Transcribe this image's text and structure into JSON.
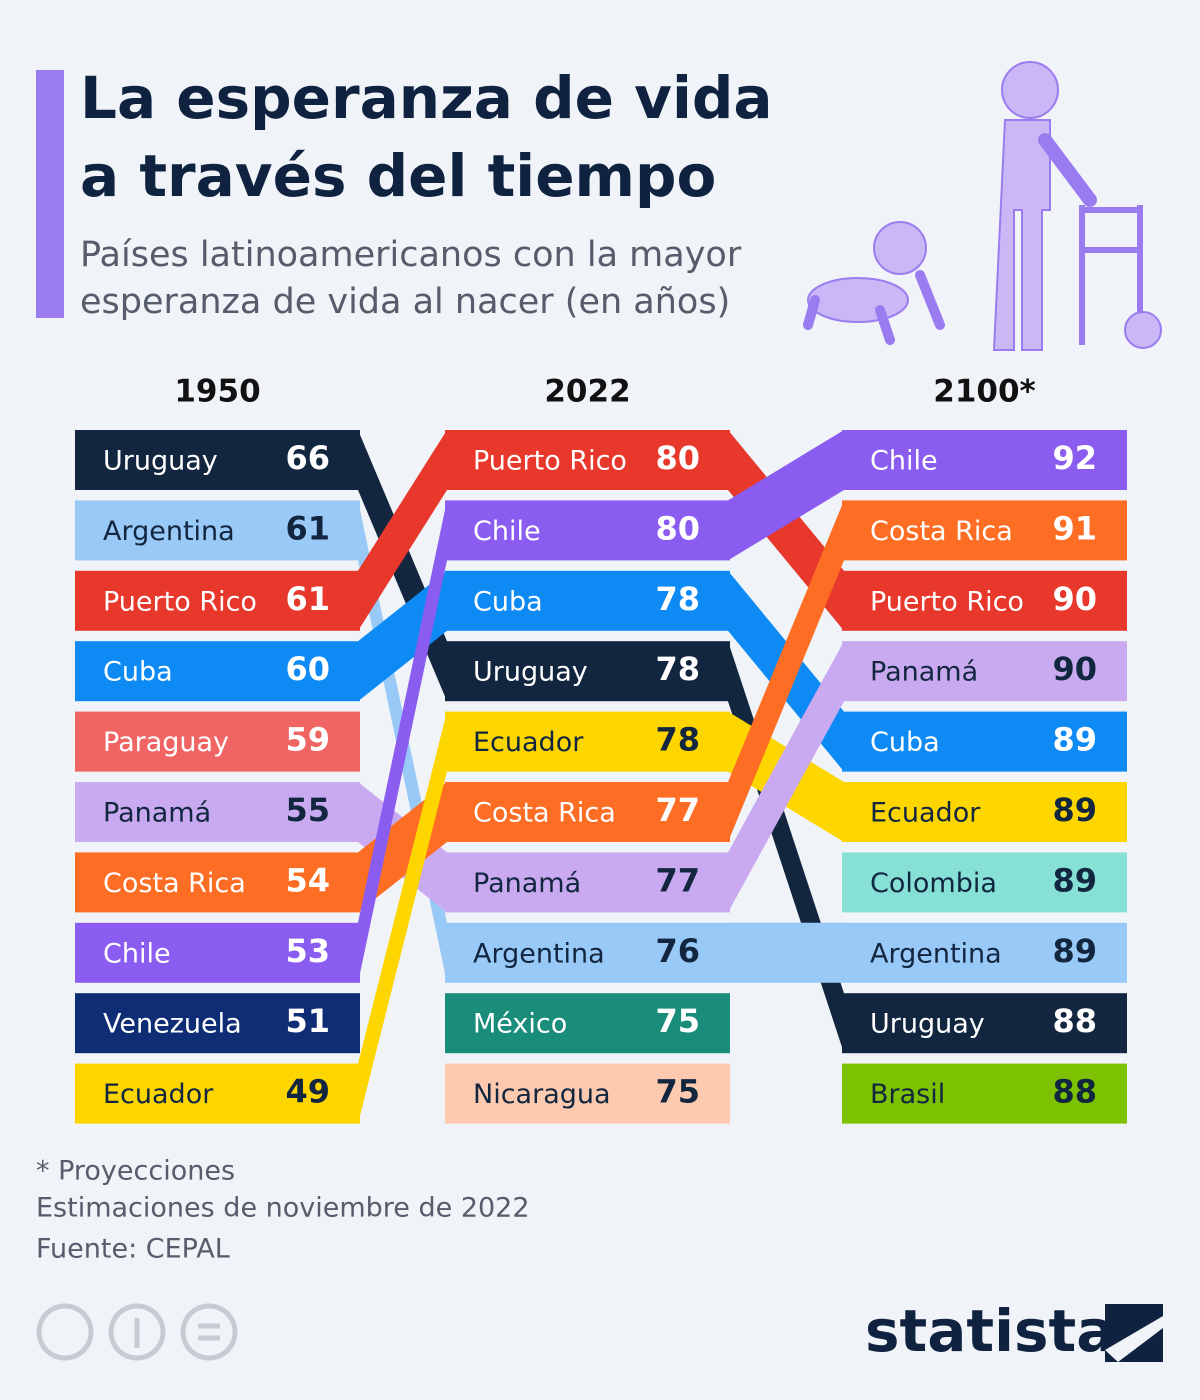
{
  "chart_data": {
    "type": "bump",
    "title": [
      "La esperanza de vida",
      "a través del tiempo"
    ],
    "subtitle": [
      "Países latinoamericanos con la mayor",
      "esperanza de vida al nacer (en años)"
    ],
    "columns": [
      {
        "label": "1950",
        "entries": [
          {
            "name": "Uruguay",
            "value": 66
          },
          {
            "name": "Argentina",
            "value": 61
          },
          {
            "name": "Puerto Rico",
            "value": 61
          },
          {
            "name": "Cuba",
            "value": 60
          },
          {
            "name": "Paraguay",
            "value": 59
          },
          {
            "name": "Panamá",
            "value": 55
          },
          {
            "name": "Costa Rica",
            "value": 54
          },
          {
            "name": "Chile",
            "value": 53
          },
          {
            "name": "Venezuela",
            "value": 51
          },
          {
            "name": "Ecuador",
            "value": 49
          }
        ]
      },
      {
        "label": "2022",
        "entries": [
          {
            "name": "Puerto Rico",
            "value": 80
          },
          {
            "name": "Chile",
            "value": 80
          },
          {
            "name": "Cuba",
            "value": 78
          },
          {
            "name": "Uruguay",
            "value": 78
          },
          {
            "name": "Ecuador",
            "value": 78
          },
          {
            "name": "Costa Rica",
            "value": 77
          },
          {
            "name": "Panamá",
            "value": 77
          },
          {
            "name": "Argentina",
            "value": 76
          },
          {
            "name": "México",
            "value": 75
          },
          {
            "name": "Nicaragua",
            "value": 75
          }
        ]
      },
      {
        "label": "2100*",
        "entries": [
          {
            "name": "Chile",
            "value": 92
          },
          {
            "name": "Costa Rica",
            "value": 91
          },
          {
            "name": "Puerto Rico",
            "value": 90
          },
          {
            "name": "Panamá",
            "value": 90
          },
          {
            "name": "Cuba",
            "value": 89
          },
          {
            "name": "Ecuador",
            "value": 89
          },
          {
            "name": "Colombia",
            "value": 89
          },
          {
            "name": "Argentina",
            "value": 89
          },
          {
            "name": "Uruguay",
            "value": 88
          },
          {
            "name": "Brasil",
            "value": 88
          }
        ]
      }
    ],
    "colors": {
      "Uruguay": "#12263f",
      "Argentina": "#99c9f7",
      "Puerto Rico": "#e8372b",
      "Cuba": "#0e8af5",
      "Paraguay": "#f06464",
      "Panamá": "#c9aaf0",
      "Costa Rica": "#fd6d24",
      "Chile": "#8b5cf0",
      "Venezuela": "#0f2d74",
      "Ecuador": "#fdd600",
      "México": "#1a8c7a",
      "Nicaragua": "#fdcab0",
      "Colombia": "#86e0d6",
      "Brasil": "#7dc200"
    },
    "notes": [
      "* Proyecciones",
      "Estimaciones de noviembre de 2022",
      "Fuente: CEPAL"
    ],
    "brand": "statista"
  }
}
